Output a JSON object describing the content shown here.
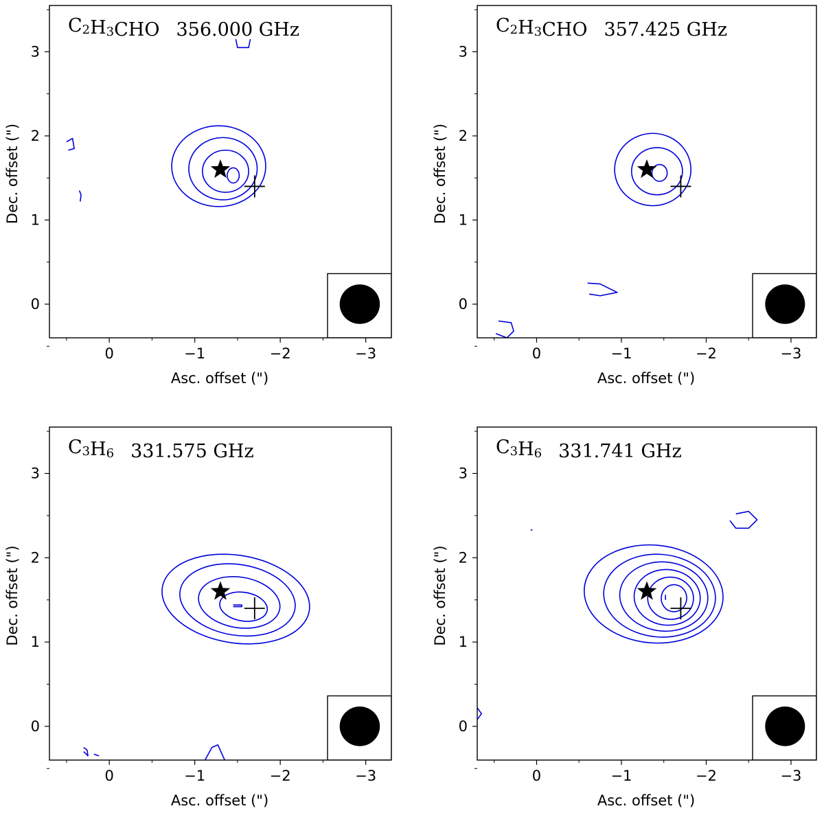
{
  "chart_data": [
    {
      "type": "contour",
      "title": {
        "molecule": [
          [
            "C",
            ""
          ],
          [
            "2",
            "sub"
          ],
          [
            "H",
            ""
          ],
          [
            "3",
            "sub"
          ],
          [
            "CHO",
            ""
          ]
        ],
        "frequency": "356.000 GHz"
      },
      "xlabel": "Asc. offset (\")",
      "ylabel": "Dec. offset (\")",
      "xlim": [
        0.7,
        -3.3
      ],
      "ylim": [
        -0.4,
        3.55
      ],
      "xticks": [
        0,
        -1,
        -2,
        -3
      ],
      "xtick_labels": [
        "0",
        "−1",
        "−2",
        "−3"
      ],
      "yticks": [
        0,
        1,
        2,
        3
      ],
      "ytick_labels": [
        "0",
        "1",
        "2",
        "3"
      ],
      "star": [
        -1.3,
        1.6
      ],
      "cross": [
        -1.7,
        1.4
      ],
      "beam": {
        "center": [
          -2.93,
          0.0
        ],
        "diameter": 0.47
      },
      "contour_color": "#0000dd",
      "contours": [
        {
          "kind": "ellipse",
          "cx": -1.28,
          "cy": 1.64,
          "rx": 0.55,
          "ry": 0.48
        },
        {
          "kind": "ellipse",
          "cx": -1.33,
          "cy": 1.61,
          "rx": 0.4,
          "ry": 0.37
        },
        {
          "kind": "ellipse",
          "cx": -1.36,
          "cy": 1.58,
          "rx": 0.27,
          "ry": 0.25
        },
        {
          "kind": "ellipse",
          "cx": -1.45,
          "cy": 1.53,
          "rx": 0.07,
          "ry": 0.09
        },
        {
          "kind": "poly",
          "points": [
            [
              -1.48,
              3.15
            ],
            [
              -1.5,
              3.05
            ],
            [
              -1.63,
              3.05
            ],
            [
              -1.65,
              3.15
            ]
          ]
        },
        {
          "kind": "poly",
          "points": [
            [
              0.5,
              1.93
            ],
            [
              0.43,
              1.97
            ],
            [
              0.41,
              1.85
            ],
            [
              0.48,
              1.83
            ]
          ]
        },
        {
          "kind": "poly",
          "points": [
            [
              0.35,
              1.35
            ],
            [
              0.33,
              1.3
            ],
            [
              0.34,
              1.22
            ]
          ]
        }
      ]
    },
    {
      "type": "contour",
      "title": {
        "molecule": [
          [
            "C",
            ""
          ],
          [
            "2",
            "sub"
          ],
          [
            "H",
            ""
          ],
          [
            "3",
            "sub"
          ],
          [
            "CHO",
            ""
          ]
        ],
        "frequency": "357.425 GHz"
      },
      "xlabel": "Asc. offset (\")",
      "ylabel": "Dec. offset (\")",
      "xlim": [
        0.7,
        -3.3
      ],
      "ylim": [
        -0.4,
        3.55
      ],
      "xticks": [
        0,
        -1,
        -2,
        -3
      ],
      "xtick_labels": [
        "0",
        "−1",
        "−2",
        "−3"
      ],
      "yticks": [
        0,
        1,
        2,
        3
      ],
      "ytick_labels": [
        "0",
        "1",
        "2",
        "3"
      ],
      "star": [
        -1.3,
        1.6
      ],
      "cross": [
        -1.7,
        1.4
      ],
      "beam": {
        "center": [
          -2.93,
          0.0
        ],
        "diameter": 0.47
      },
      "contour_color": "#0000dd",
      "contours": [
        {
          "kind": "ellipse",
          "cx": -1.37,
          "cy": 1.6,
          "rx": 0.45,
          "ry": 0.43
        },
        {
          "kind": "ellipse",
          "cx": -1.42,
          "cy": 1.58,
          "rx": 0.3,
          "ry": 0.28
        },
        {
          "kind": "ellipse",
          "cx": -1.45,
          "cy": 1.56,
          "rx": 0.09,
          "ry": 0.1
        },
        {
          "kind": "poly",
          "points": [
            [
              -0.6,
              0.25
            ],
            [
              -0.75,
              0.24
            ],
            [
              -0.95,
              0.14
            ],
            [
              -0.75,
              0.1
            ],
            [
              -0.62,
              0.12
            ]
          ]
        },
        {
          "kind": "poly",
          "points": [
            [
              0.45,
              -0.2
            ],
            [
              0.3,
              -0.22
            ],
            [
              0.27,
              -0.32
            ],
            [
              0.35,
              -0.4
            ],
            [
              0.48,
              -0.35
            ]
          ]
        }
      ]
    },
    {
      "type": "contour",
      "title": {
        "molecule": [
          [
            "C",
            ""
          ],
          [
            "3",
            "sub"
          ],
          [
            "H",
            ""
          ],
          [
            "6",
            "sub"
          ]
        ],
        "frequency": "331.575 GHz"
      },
      "xlabel": "Asc. offset (\")",
      "ylabel": "Dec. offset (\")",
      "xlim": [
        0.7,
        -3.3
      ],
      "ylim": [
        -0.4,
        3.55
      ],
      "xticks": [
        0,
        -1,
        -2,
        -3
      ],
      "xtick_labels": [
        "0",
        "−1",
        "−2",
        "−3"
      ],
      "yticks": [
        0,
        1,
        2,
        3
      ],
      "ytick_labels": [
        "0",
        "1",
        "2",
        "3"
      ],
      "star": [
        -1.3,
        1.6
      ],
      "cross": [
        -1.7,
        1.4
      ],
      "beam": {
        "center": [
          -2.93,
          0.0
        ],
        "diameter": 0.47
      },
      "contour_color": "#0000dd",
      "contours": [
        {
          "kind": "ellipse",
          "cx": -1.48,
          "cy": 1.51,
          "rx": 0.87,
          "ry": 0.52,
          "rot": 9
        },
        {
          "kind": "ellipse",
          "cx": -1.5,
          "cy": 1.5,
          "rx": 0.68,
          "ry": 0.42,
          "rot": 9
        },
        {
          "kind": "ellipse",
          "cx": -1.52,
          "cy": 1.47,
          "rx": 0.48,
          "ry": 0.3,
          "rot": 9
        },
        {
          "kind": "ellipse",
          "cx": -1.57,
          "cy": 1.42,
          "rx": 0.28,
          "ry": 0.17,
          "rot": 9
        },
        {
          "kind": "poly",
          "points": [
            [
              -1.45,
              1.44
            ],
            [
              -1.55,
              1.44
            ],
            [
              -1.55,
              1.42
            ],
            [
              -1.45,
              1.42
            ]
          ]
        },
        {
          "kind": "poly",
          "points": [
            [
              0.3,
              -0.25
            ],
            [
              0.26,
              -0.28
            ],
            [
              0.25,
              -0.35
            ],
            [
              0.3,
              -0.3
            ]
          ]
        },
        {
          "kind": "poly",
          "points": [
            [
              0.18,
              -0.33
            ],
            [
              0.12,
              -0.35
            ]
          ]
        },
        {
          "kind": "poly",
          "points": [
            [
              -1.12,
              -0.4
            ],
            [
              -1.2,
              -0.25
            ],
            [
              -1.27,
              -0.22
            ],
            [
              -1.35,
              -0.4
            ]
          ]
        }
      ]
    },
    {
      "type": "contour",
      "title": {
        "molecule": [
          [
            "C",
            ""
          ],
          [
            "3",
            "sub"
          ],
          [
            "H",
            ""
          ],
          [
            "6",
            "sub"
          ]
        ],
        "frequency": "331.741 GHz"
      },
      "xlabel": "Asc. offset (\")",
      "ylabel": "Dec. offset (\")",
      "xlim": [
        0.7,
        -3.3
      ],
      "ylim": [
        -0.4,
        3.55
      ],
      "xticks": [
        0,
        -1,
        -2,
        -3
      ],
      "xtick_labels": [
        "0",
        "−1",
        "−2",
        "−3"
      ],
      "yticks": [
        0,
        1,
        2,
        3
      ],
      "ytick_labels": [
        "0",
        "1",
        "2",
        "3"
      ],
      "star": [
        -1.3,
        1.6
      ],
      "cross": [
        -1.7,
        1.4
      ],
      "beam": {
        "center": [
          -2.93,
          0.0
        ],
        "diameter": 0.47
      },
      "contour_color": "#0000dd",
      "contours": [
        {
          "kind": "ellipse",
          "cx": -1.38,
          "cy": 1.57,
          "rx": 0.82,
          "ry": 0.58,
          "rot": 5
        },
        {
          "kind": "ellipse",
          "cx": -1.45,
          "cy": 1.55,
          "rx": 0.66,
          "ry": 0.49,
          "rot": 5
        },
        {
          "kind": "ellipse",
          "cx": -1.5,
          "cy": 1.54,
          "rx": 0.52,
          "ry": 0.41,
          "rot": 5
        },
        {
          "kind": "ellipse",
          "cx": -1.54,
          "cy": 1.53,
          "rx": 0.39,
          "ry": 0.33,
          "rot": 5
        },
        {
          "kind": "ellipse",
          "cx": -1.58,
          "cy": 1.52,
          "rx": 0.27,
          "ry": 0.25,
          "rot": 5
        },
        {
          "kind": "ellipse",
          "cx": -1.62,
          "cy": 1.52,
          "rx": 0.15,
          "ry": 0.16,
          "rot": 5
        },
        {
          "kind": "poly",
          "points": [
            [
              -1.52,
              1.56
            ],
            [
              -1.52,
              1.5
            ]
          ]
        },
        {
          "kind": "poly",
          "points": [
            [
              -2.35,
              2.52
            ],
            [
              -2.5,
              2.55
            ],
            [
              -2.6,
              2.45
            ],
            [
              -2.5,
              2.35
            ],
            [
              -2.35,
              2.35
            ],
            [
              -2.28,
              2.44
            ]
          ]
        },
        {
          "kind": "poly",
          "points": [
            [
              0.07,
              2.33
            ],
            [
              0.05,
              2.33
            ]
          ]
        },
        {
          "kind": "poly",
          "points": [
            [
              0.7,
              0.22
            ],
            [
              0.65,
              0.15
            ],
            [
              0.7,
              0.08
            ]
          ]
        }
      ]
    }
  ]
}
